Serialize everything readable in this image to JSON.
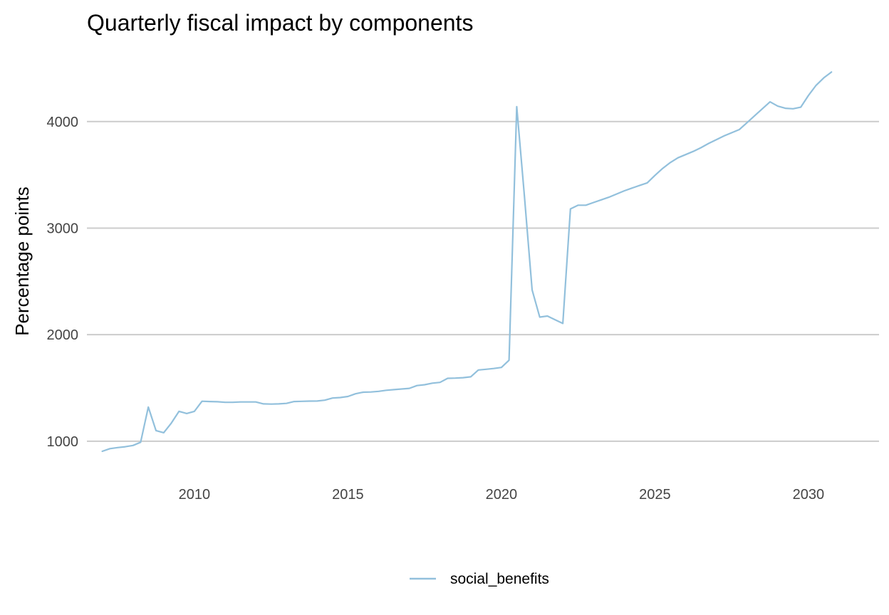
{
  "chart_data": {
    "type": "line",
    "title": "Quarterly fiscal impact  by components",
    "xlabel": "",
    "ylabel": "Percentage points",
    "xlim": [
      2006.5,
      2032.3
    ],
    "ylim": [
      765,
      4640
    ],
    "x_ticks": [
      2010,
      2015,
      2020,
      2025,
      2030
    ],
    "y_ticks": [
      1000,
      2000,
      3000,
      4000
    ],
    "grid": {
      "horizontal": true,
      "vertical": false
    },
    "legend_position": "bottom",
    "series": [
      {
        "name": "social_benefits",
        "color": "#92c0dc",
        "x": [
          2007.0,
          2007.25,
          2007.5,
          2007.75,
          2008.0,
          2008.25,
          2008.5,
          2008.75,
          2009.0,
          2009.25,
          2009.5,
          2009.75,
          2010.0,
          2010.25,
          2010.5,
          2010.75,
          2011.0,
          2011.25,
          2011.5,
          2011.75,
          2012.0,
          2012.25,
          2012.5,
          2012.75,
          2013.0,
          2013.25,
          2013.5,
          2013.75,
          2014.0,
          2014.25,
          2014.5,
          2014.75,
          2015.0,
          2015.25,
          2015.5,
          2015.75,
          2016.0,
          2016.25,
          2016.5,
          2016.75,
          2017.0,
          2017.25,
          2017.5,
          2017.75,
          2018.0,
          2018.25,
          2018.5,
          2018.75,
          2019.0,
          2019.25,
          2019.5,
          2019.75,
          2020.0,
          2020.25,
          2020.5,
          2020.75,
          2021.0,
          2021.25,
          2021.5,
          2021.75,
          2022.0,
          2022.25,
          2022.5,
          2022.75,
          2023.0,
          2023.25,
          2023.5,
          2023.75,
          2024.0,
          2024.25,
          2024.5,
          2024.75,
          2025.0,
          2025.25,
          2025.5,
          2025.75,
          2026.0,
          2026.25,
          2026.5,
          2026.75,
          2027.0,
          2027.25,
          2027.5,
          2027.75,
          2028.0,
          2028.25,
          2028.5,
          2028.75,
          2029.0,
          2029.25,
          2029.5,
          2029.75,
          2030.0,
          2030.25,
          2030.5,
          2030.75
        ],
        "values": [
          905,
          930,
          940,
          948,
          960,
          990,
          1320,
          1100,
          1080,
          1170,
          1280,
          1260,
          1280,
          1375,
          1372,
          1370,
          1365,
          1365,
          1368,
          1368,
          1368,
          1350,
          1348,
          1350,
          1355,
          1372,
          1374,
          1376,
          1377,
          1385,
          1405,
          1410,
          1420,
          1445,
          1460,
          1462,
          1468,
          1478,
          1484,
          1490,
          1496,
          1522,
          1530,
          1545,
          1552,
          1590,
          1592,
          1596,
          1604,
          1668,
          1675,
          1682,
          1692,
          1760,
          4140,
          3300,
          2420,
          2165,
          2175,
          2140,
          2105,
          3180,
          3215,
          3215,
          3240,
          3265,
          3290,
          3320,
          3350,
          3375,
          3400,
          3425,
          3495,
          3560,
          3615,
          3660,
          3690,
          3720,
          3755,
          3795,
          3830,
          3865,
          3895,
          3925,
          3990,
          4055,
          4120,
          4185,
          4145,
          4125,
          4120,
          4135,
          4245,
          4340,
          4410,
          4465
        ]
      }
    ]
  }
}
